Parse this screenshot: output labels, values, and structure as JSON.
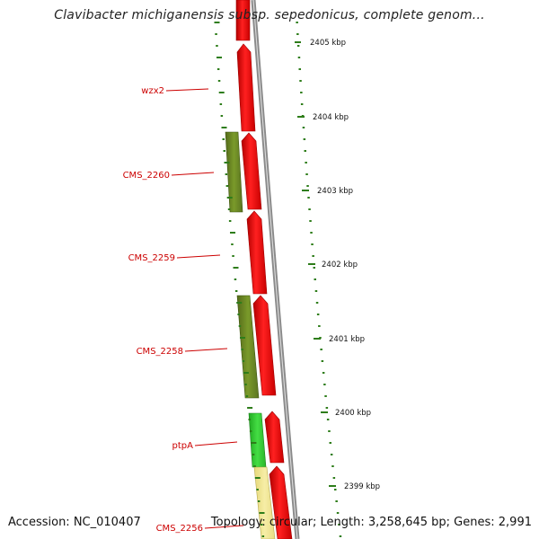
{
  "title": "Clavibacter michiganensis subsp. sepedonicus, complete genom...",
  "accession": "Accession: NC_010407",
  "topology_info": "Topology: circular; Length: 3,258,645 bp; Genes: 2,991",
  "ticks": [
    {
      "label": "2405 kbp"
    },
    {
      "label": "2404 kbp"
    },
    {
      "label": "2403 kbp"
    },
    {
      "label": "2402 kbp"
    },
    {
      "label": "2401 kbp"
    },
    {
      "label": "2400 kbp"
    },
    {
      "label": "2399 kbp"
    }
  ],
  "gene_labels": [
    {
      "text": "wzx2"
    },
    {
      "text": "CMS_2260"
    },
    {
      "text": "CMS_2259"
    },
    {
      "text": "CMS_2258"
    },
    {
      "text": "ptpA"
    },
    {
      "text": "CMS_2256"
    }
  ],
  "colors": {
    "forward_cds": "#ff0000",
    "reverse_olive": "#6b8e23",
    "reverse_green": "#33cc33",
    "reverse_pale": "#f0e68c",
    "backbone": "#888888",
    "tick": "#2e7d1a",
    "label_red": "#cc0000"
  }
}
